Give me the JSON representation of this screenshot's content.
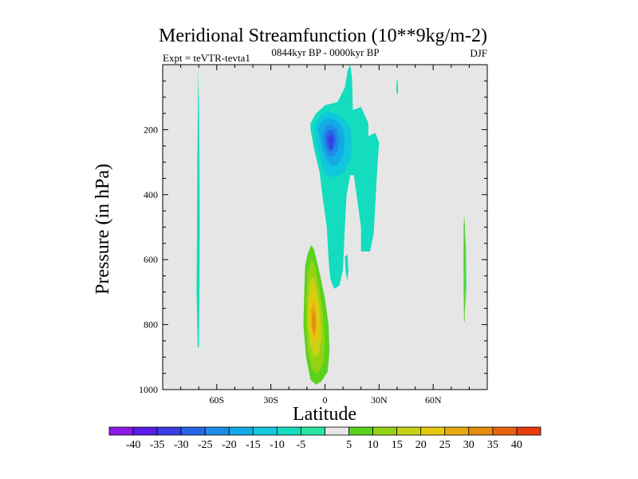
{
  "chart_data": {
    "type": "contour",
    "title": "Meridional Streamfunction (10**9kg/m-2)",
    "left_subtitle": "Expt = teVTR-tevta1",
    "center_subtitle": "0844kyr BP - 0000kyr BP",
    "right_subtitle": "DJF",
    "xlabel": "Latitude",
    "ylabel": "Pressure (in hPa)",
    "xlim": [
      -90,
      90
    ],
    "ylim": [
      1000,
      0
    ],
    "x_ticks": [
      {
        "value": -60,
        "label": "60S"
      },
      {
        "value": -30,
        "label": "30S"
      },
      {
        "value": 0,
        "label": "0"
      },
      {
        "value": 30,
        "label": "30N"
      },
      {
        "value": 60,
        "label": "60N"
      }
    ],
    "y_ticks": [
      {
        "value": 200,
        "label": "200"
      },
      {
        "value": 400,
        "label": "400"
      },
      {
        "value": 600,
        "label": "600"
      },
      {
        "value": 800,
        "label": "800"
      },
      {
        "value": 1000,
        "label": "1000"
      }
    ],
    "background_color": "#e6e6e6",
    "colorbar": {
      "labels": [
        "-40",
        "-35",
        "-30",
        "-25",
        "-20",
        "-15",
        "-10",
        "-5",
        "5",
        "10",
        "15",
        "20",
        "25",
        "30",
        "35",
        "40"
      ],
      "colors": [
        "#8c19e6",
        "#5a1ee6",
        "#3c3ce6",
        "#2864e6",
        "#1e8ce6",
        "#14aae6",
        "#0fc8dc",
        "#14dcbe",
        "#28e6a0",
        "#e6e6e6",
        "#5ad21e",
        "#96d214",
        "#c8d214",
        "#e6c80f",
        "#e6aa0f",
        "#e68c0f",
        "#e6640f",
        "#e63c0f"
      ]
    },
    "contours": [
      {
        "name": "sh-high-lat-negative-cell",
        "level": -5,
        "color": "#14dcbe",
        "polygon": [
          [
            -70.3,
            15
          ],
          [
            -69.9,
            120
          ],
          [
            -69.6,
            300
          ],
          [
            -69.4,
            500
          ],
          [
            -69.6,
            700
          ],
          [
            -69.9,
            870
          ],
          [
            -70.6,
            870
          ],
          [
            -71.2,
            700
          ],
          [
            -71.0,
            500
          ],
          [
            -70.8,
            300
          ],
          [
            -70.5,
            120
          ]
        ]
      },
      {
        "name": "upper-negative-cell-outer",
        "level": -5,
        "color": "#14dcbe",
        "polygon": [
          [
            -8,
            180
          ],
          [
            -5,
            150
          ],
          [
            0,
            125
          ],
          [
            7,
            115
          ],
          [
            11,
            70
          ],
          [
            12.5,
            20
          ],
          [
            14,
            0
          ],
          [
            15,
            40
          ],
          [
            15.5,
            140
          ],
          [
            20,
            130
          ],
          [
            24,
            180
          ],
          [
            24,
            220
          ],
          [
            28,
            210
          ],
          [
            30,
            240
          ],
          [
            29,
            320
          ],
          [
            28,
            420
          ],
          [
            27,
            520
          ],
          [
            25,
            575
          ],
          [
            20,
            575
          ],
          [
            20,
            500
          ],
          [
            18,
            420
          ],
          [
            16,
            340
          ],
          [
            14,
            340
          ],
          [
            12,
            400
          ],
          [
            11,
            500
          ],
          [
            10,
            630
          ],
          [
            8,
            680
          ],
          [
            5,
            690
          ],
          [
            3,
            660
          ],
          [
            2,
            600
          ],
          [
            1,
            500
          ],
          [
            -1,
            420
          ],
          [
            -3,
            330
          ],
          [
            -6,
            260
          ],
          [
            -8,
            200
          ]
        ]
      },
      {
        "name": "upper-negative-cell-level-10",
        "level": -10,
        "color": "#0fc8dc",
        "polygon": [
          [
            -6,
            190
          ],
          [
            -3,
            160
          ],
          [
            1,
            145
          ],
          [
            6,
            150
          ],
          [
            10,
            165
          ],
          [
            14,
            195
          ],
          [
            15,
            250
          ],
          [
            14,
            290
          ],
          [
            11,
            330
          ],
          [
            6,
            345
          ],
          [
            2,
            345
          ],
          [
            -1,
            320
          ],
          [
            -3,
            280
          ],
          [
            -5,
            240
          ]
        ]
      },
      {
        "name": "upper-negative-cell-level-15",
        "level": -15,
        "color": "#14aae6",
        "polygon": [
          [
            -4,
            195
          ],
          [
            -1,
            170
          ],
          [
            3,
            165
          ],
          [
            7,
            175
          ],
          [
            10,
            195
          ],
          [
            11,
            240
          ],
          [
            10,
            280
          ],
          [
            7,
            310
          ],
          [
            3,
            310
          ],
          [
            0,
            290
          ],
          [
            -2,
            250
          ],
          [
            -3,
            220
          ]
        ]
      },
      {
        "name": "upper-negative-cell-level-20",
        "level": -20,
        "color": "#1e8ce6",
        "polygon": [
          [
            -1,
            210
          ],
          [
            1,
            188
          ],
          [
            4,
            186
          ],
          [
            7,
            200
          ],
          [
            8,
            230
          ],
          [
            7,
            262
          ],
          [
            5,
            282
          ],
          [
            2,
            282
          ],
          [
            0,
            262
          ],
          [
            -1,
            235
          ]
        ]
      },
      {
        "name": "upper-negative-cell-level-25",
        "level": -25,
        "color": "#2864e6",
        "polygon": [
          [
            0.5,
            215
          ],
          [
            2.5,
            200
          ],
          [
            5,
            204
          ],
          [
            6,
            230
          ],
          [
            5,
            258
          ],
          [
            3,
            268
          ],
          [
            1.5,
            258
          ],
          [
            0.5,
            235
          ]
        ]
      },
      {
        "name": "upper-negative-cell-core",
        "level": -30,
        "color": "#3c3ce6",
        "polygon": [
          [
            2,
            225
          ],
          [
            3.3,
            212
          ],
          [
            4.5,
            225
          ],
          [
            4.3,
            255
          ],
          [
            3,
            262
          ],
          [
            2.2,
            250
          ]
        ]
      },
      {
        "name": "nh-small-negative-blob",
        "level": -5,
        "color": "#14dcbe",
        "polygon": [
          [
            11,
            590
          ],
          [
            12.5,
            585
          ],
          [
            13,
            630
          ],
          [
            12.5,
            665
          ],
          [
            11.5,
            640
          ]
        ]
      },
      {
        "name": "nh-tiny-negative-blob",
        "level": -5,
        "color": "#14dcbe",
        "polygon": [
          [
            39.7,
            50
          ],
          [
            40.2,
            45
          ],
          [
            40.5,
            80
          ],
          [
            40,
            95
          ],
          [
            39.6,
            80
          ]
        ]
      },
      {
        "name": "lower-positive-cell-outer",
        "level": 5,
        "color": "#5ad21e",
        "polygon": [
          [
            -11.5,
            700
          ],
          [
            -11,
            620
          ],
          [
            -9.5,
            580
          ],
          [
            -7.5,
            555
          ],
          [
            -6,
            570
          ],
          [
            -3,
            640
          ],
          [
            0,
            720
          ],
          [
            2,
            800
          ],
          [
            2.5,
            880
          ],
          [
            1.5,
            945
          ],
          [
            -2,
            975
          ],
          [
            -5,
            985
          ],
          [
            -8,
            970
          ],
          [
            -10.5,
            900
          ],
          [
            -12,
            800
          ]
        ]
      },
      {
        "name": "lower-positive-cell-level-10",
        "level": 10,
        "color": "#96d214",
        "polygon": [
          [
            -10.5,
            720
          ],
          [
            -9.5,
            640
          ],
          [
            -7.5,
            600
          ],
          [
            -5.5,
            620
          ],
          [
            -3,
            690
          ],
          [
            -1,
            770
          ],
          [
            0,
            850
          ],
          [
            -1,
            920
          ],
          [
            -4,
            950
          ],
          [
            -7,
            940
          ],
          [
            -9.5,
            880
          ],
          [
            -10.5,
            800
          ]
        ]
      },
      {
        "name": "lower-positive-cell-level-15",
        "level": 15,
        "color": "#c8d214",
        "polygon": [
          [
            -9.5,
            740
          ],
          [
            -8.5,
            670
          ],
          [
            -6.5,
            650
          ],
          [
            -4.5,
            690
          ],
          [
            -2.5,
            760
          ],
          [
            -2,
            840
          ],
          [
            -3.5,
            890
          ],
          [
            -6,
            900
          ],
          [
            -8.5,
            860
          ],
          [
            -9.5,
            800
          ]
        ]
      },
      {
        "name": "lower-positive-cell-level-20",
        "level": 20,
        "color": "#e6c80f",
        "polygon": [
          [
            -8.5,
            750
          ],
          [
            -7.5,
            700
          ],
          [
            -6,
            690
          ],
          [
            -4.5,
            730
          ],
          [
            -3.5,
            790
          ],
          [
            -3.8,
            840
          ],
          [
            -5.5,
            860
          ],
          [
            -7.5,
            840
          ],
          [
            -8.5,
            800
          ]
        ]
      },
      {
        "name": "lower-positive-cell-level-25",
        "level": 25,
        "color": "#e6aa0f",
        "polygon": [
          [
            -7.8,
            760
          ],
          [
            -6.5,
            730
          ],
          [
            -5.3,
            750
          ],
          [
            -4.5,
            790
          ],
          [
            -5,
            825
          ],
          [
            -6.3,
            835
          ],
          [
            -7.5,
            815
          ]
        ]
      },
      {
        "name": "lower-positive-cell-core",
        "level": 30,
        "color": "#e68c0f",
        "polygon": [
          [
            -7.2,
            775
          ],
          [
            -6.2,
            755
          ],
          [
            -5.4,
            775
          ],
          [
            -5.2,
            805
          ],
          [
            -6,
            825
          ],
          [
            -7,
            810
          ]
        ]
      },
      {
        "name": "nh-high-lat-positive-strip",
        "level": 5,
        "color": "#5ad21e",
        "polygon": [
          [
            77.2,
            460
          ],
          [
            77.6,
            500
          ],
          [
            77.8,
            600
          ],
          [
            77.7,
            700
          ],
          [
            77.5,
            790
          ],
          [
            77.1,
            790
          ],
          [
            76.9,
            700
          ],
          [
            76.8,
            600
          ],
          [
            76.9,
            500
          ]
        ]
      },
      {
        "name": "nh-high-lat-negative-edge",
        "level": -5,
        "color": "#14dcbe",
        "polygon": [
          [
            77.5,
            500
          ],
          [
            78.2,
            560
          ],
          [
            78.4,
            680
          ],
          [
            77.9,
            760
          ],
          [
            77.7,
            700
          ],
          [
            77.8,
            600
          ]
        ]
      }
    ]
  }
}
